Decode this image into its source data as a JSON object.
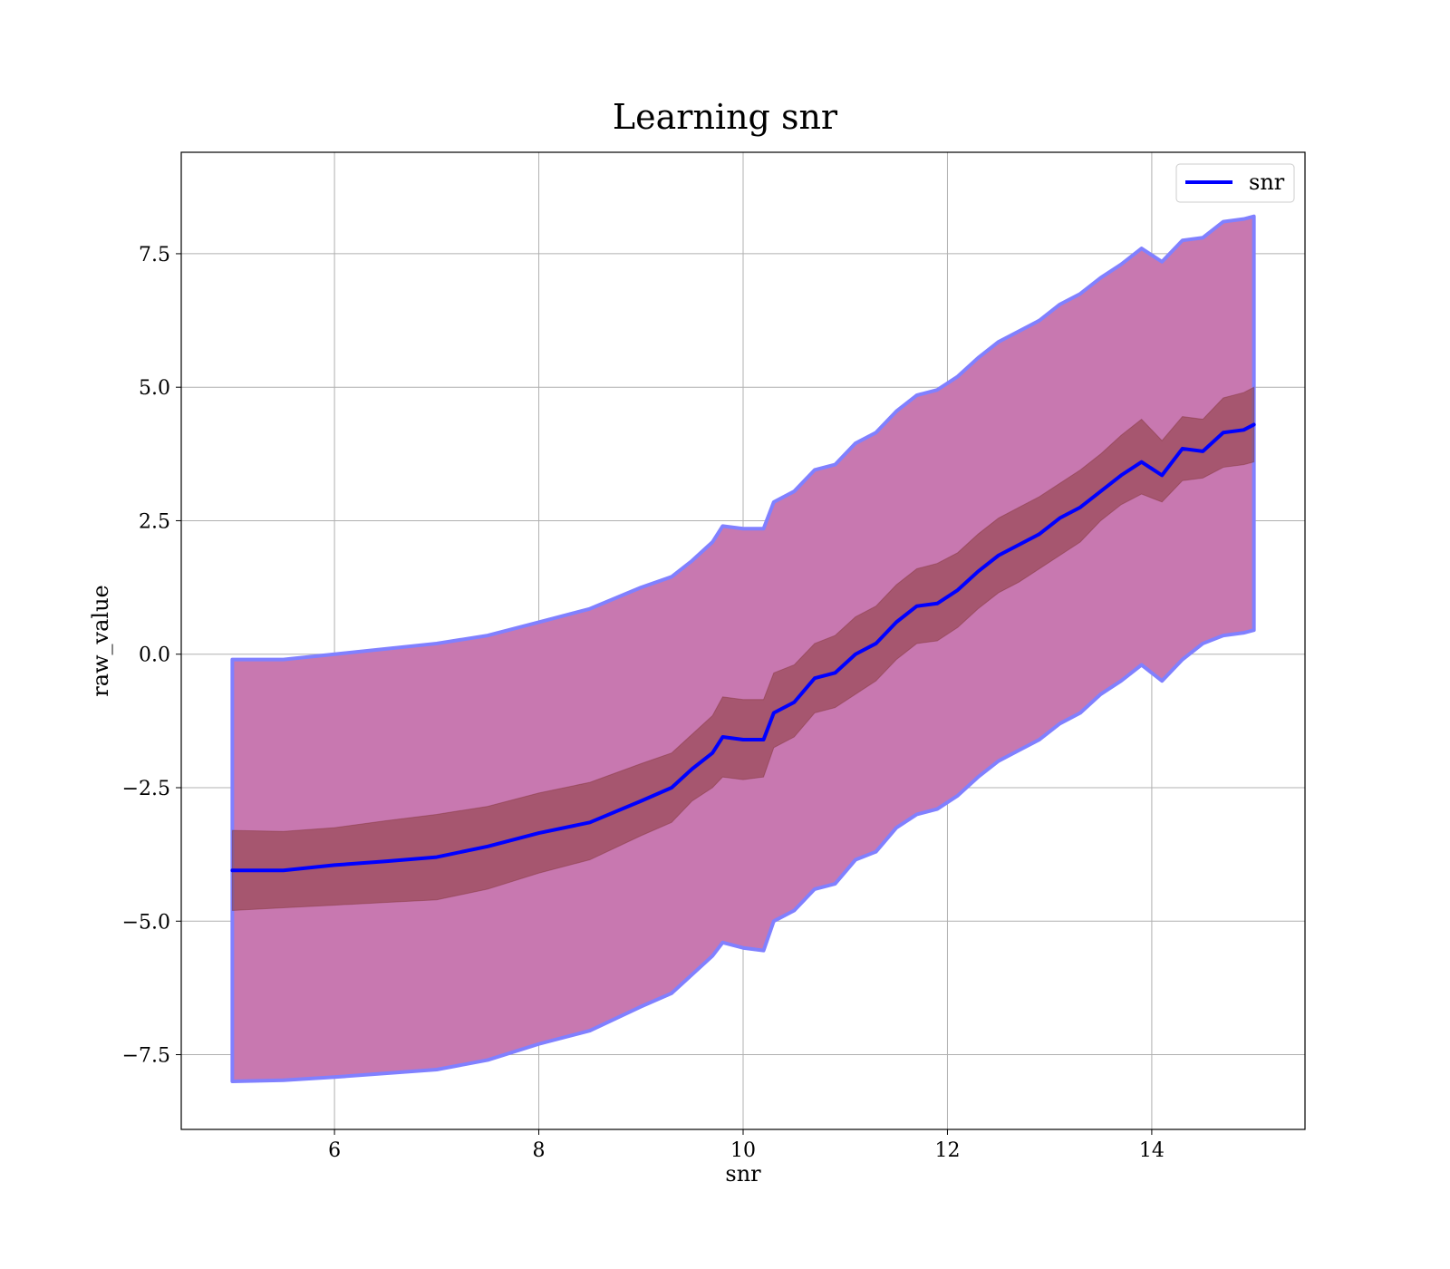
{
  "chart_data": {
    "type": "line",
    "title": "Learning snr",
    "xlabel": "snr",
    "ylabel": "raw_value",
    "xlim": [
      4.5,
      15.5
    ],
    "ylim": [
      -8.9,
      9.4
    ],
    "xticks": [
      6,
      8,
      10,
      12,
      14
    ],
    "xtick_labels": [
      "6",
      "8",
      "10",
      "12",
      "14"
    ],
    "yticks": [
      -7.5,
      -5.0,
      -2.5,
      0.0,
      2.5,
      5.0,
      7.5
    ],
    "ytick_labels": [
      "−7.5",
      "−5.0",
      "−2.5",
      "0.0",
      "2.5",
      "5.0",
      "7.5"
    ],
    "grid": true,
    "legend_position": "top-right",
    "x": [
      5.0,
      5.5,
      6.0,
      6.5,
      7.0,
      7.5,
      8.0,
      8.5,
      9.0,
      9.3,
      9.5,
      9.7,
      9.8,
      10.0,
      10.2,
      10.3,
      10.5,
      10.7,
      10.9,
      11.1,
      11.3,
      11.5,
      11.7,
      11.9,
      12.1,
      12.3,
      12.5,
      12.7,
      12.9,
      13.1,
      13.3,
      13.5,
      13.7,
      13.9,
      14.1,
      14.3,
      14.5,
      14.7,
      14.9,
      15.0
    ],
    "series": [
      {
        "name": "snr",
        "color": "#0000ff",
        "values": [
          -4.05,
          -4.05,
          -3.95,
          -3.88,
          -3.8,
          -3.6,
          -3.35,
          -3.15,
          -2.75,
          -2.5,
          -2.15,
          -1.85,
          -1.55,
          -1.6,
          -1.6,
          -1.1,
          -0.9,
          -0.45,
          -0.35,
          0.0,
          0.2,
          0.6,
          0.9,
          0.95,
          1.2,
          1.55,
          1.85,
          2.05,
          2.25,
          2.55,
          2.75,
          3.05,
          3.35,
          3.6,
          3.35,
          3.85,
          3.8,
          4.15,
          4.2,
          4.3
        ],
        "inner_band": {
          "color": "#8b3a3a",
          "lower": [
            -4.8,
            -4.75,
            -4.7,
            -4.65,
            -4.6,
            -4.4,
            -4.1,
            -3.85,
            -3.4,
            -3.15,
            -2.75,
            -2.5,
            -2.3,
            -2.35,
            -2.3,
            -1.75,
            -1.55,
            -1.1,
            -1.0,
            -0.75,
            -0.5,
            -0.1,
            0.2,
            0.25,
            0.5,
            0.85,
            1.15,
            1.35,
            1.6,
            1.85,
            2.1,
            2.5,
            2.8,
            3.0,
            2.85,
            3.25,
            3.3,
            3.5,
            3.55,
            3.6
          ],
          "upper": [
            -3.3,
            -3.32,
            -3.25,
            -3.12,
            -3.0,
            -2.85,
            -2.6,
            -2.4,
            -2.05,
            -1.85,
            -1.5,
            -1.15,
            -0.8,
            -0.85,
            -0.85,
            -0.35,
            -0.2,
            0.2,
            0.35,
            0.7,
            0.9,
            1.3,
            1.6,
            1.7,
            1.9,
            2.25,
            2.55,
            2.75,
            2.95,
            3.2,
            3.45,
            3.75,
            4.1,
            4.4,
            4.0,
            4.45,
            4.4,
            4.8,
            4.9,
            5.0
          ]
        },
        "outer_band": {
          "color": "#c878b0",
          "edge_color": "#8080ff",
          "lower": [
            -8.0,
            -7.98,
            -7.92,
            -7.85,
            -7.78,
            -7.6,
            -7.3,
            -7.05,
            -6.6,
            -6.35,
            -6.0,
            -5.65,
            -5.4,
            -5.5,
            -5.55,
            -5.0,
            -4.8,
            -4.4,
            -4.3,
            -3.85,
            -3.7,
            -3.25,
            -3.0,
            -2.9,
            -2.65,
            -2.3,
            -2.0,
            -1.8,
            -1.6,
            -1.3,
            -1.1,
            -0.75,
            -0.5,
            -0.2,
            -0.5,
            -0.1,
            0.2,
            0.35,
            0.4,
            0.45
          ],
          "upper": [
            -0.1,
            -0.1,
            0.0,
            0.1,
            0.2,
            0.35,
            0.6,
            0.85,
            1.25,
            1.45,
            1.75,
            2.1,
            2.4,
            2.35,
            2.35,
            2.85,
            3.05,
            3.45,
            3.55,
            3.95,
            4.15,
            4.55,
            4.85,
            4.95,
            5.2,
            5.55,
            5.85,
            6.05,
            6.25,
            6.55,
            6.75,
            7.05,
            7.3,
            7.6,
            7.35,
            7.75,
            7.8,
            8.1,
            8.15,
            8.2
          ]
        }
      }
    ]
  }
}
